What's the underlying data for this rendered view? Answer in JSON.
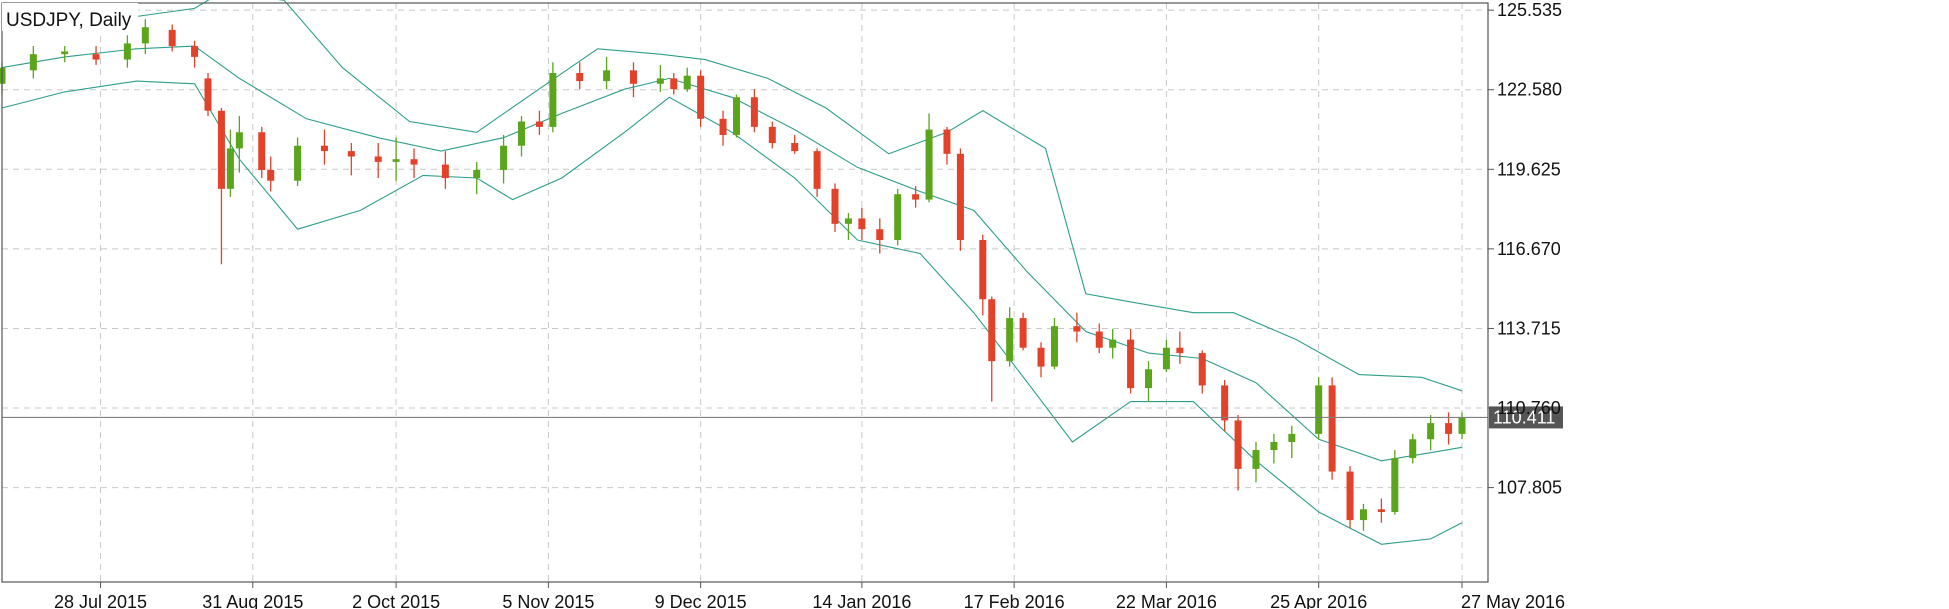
{
  "chart_data": {
    "type": "candlestick",
    "title": "USDJPY, Daily",
    "y_tick_labels": [
      "125.535",
      "122.580",
      "119.625",
      "116.670",
      "113.715",
      "110.760",
      "107.805"
    ],
    "y_ticks": [
      125.535,
      122.58,
      119.625,
      116.67,
      113.715,
      110.76,
      107.805
    ],
    "ylim": [
      104.3,
      125.8
    ],
    "x_tick_labels": [
      "28 Jul 2015",
      "31 Aug 2015",
      "2 Oct 2015",
      "5 Nov 2015",
      "9 Dec 2015",
      "14 Jan 2016",
      "17 Feb 2016",
      "22 Mar 2016",
      "25 Apr 2016",
      "27 May 2016"
    ],
    "x_tick_dates": [
      "2015-07-28",
      "2015-08-31",
      "2015-10-02",
      "2015-11-05",
      "2015-12-09",
      "2016-01-14",
      "2016-02-17",
      "2016-03-22",
      "2016-04-25",
      "2016-05-27"
    ],
    "date_range": [
      "2015-07-06",
      "2016-05-27"
    ],
    "current_price": "110.411",
    "colors": {
      "up": "#5aa51c",
      "down": "#e2412a",
      "band": "#2e9e8a",
      "grid": "#c8c8c8",
      "price_tag_bg": "#555555"
    },
    "series": [
      {
        "type": "candlestick",
        "points": [
          [
            "2015-07-06",
            122.8,
            123.6,
            122.4,
            123.4
          ],
          [
            "2015-07-13",
            123.3,
            124.2,
            123.0,
            123.9
          ],
          [
            "2015-07-20",
            123.9,
            124.2,
            123.6,
            124.0
          ],
          [
            "2015-07-27",
            123.9,
            124.2,
            123.5,
            123.7
          ],
          [
            "2015-08-03",
            123.7,
            124.6,
            123.4,
            124.3
          ],
          [
            "2015-08-07",
            124.3,
            125.2,
            123.9,
            124.9
          ],
          [
            "2015-08-13",
            124.8,
            125.0,
            124.0,
            124.2
          ],
          [
            "2015-08-18",
            124.2,
            124.4,
            123.4,
            123.8
          ],
          [
            "2015-08-21",
            123.0,
            123.2,
            121.6,
            121.8
          ],
          [
            "2015-08-24",
            121.8,
            121.9,
            116.1,
            118.9
          ],
          [
            "2015-08-26",
            118.9,
            121.1,
            118.6,
            120.4
          ],
          [
            "2015-08-28",
            120.4,
            121.6,
            119.5,
            121.0
          ],
          [
            "2015-09-02",
            121.0,
            121.2,
            119.3,
            119.6
          ],
          [
            "2015-09-04",
            119.6,
            120.1,
            118.8,
            119.2
          ],
          [
            "2015-09-10",
            119.2,
            120.8,
            119.0,
            120.5
          ],
          [
            "2015-09-16",
            120.5,
            121.1,
            119.8,
            120.3
          ],
          [
            "2015-09-22",
            120.3,
            120.6,
            119.4,
            120.1
          ],
          [
            "2015-09-28",
            120.1,
            120.6,
            119.3,
            119.9
          ],
          [
            "2015-10-02",
            119.9,
            120.8,
            119.2,
            120.0
          ],
          [
            "2015-10-06",
            120.0,
            120.4,
            119.3,
            119.8
          ],
          [
            "2015-10-13",
            119.8,
            120.3,
            118.9,
            119.3
          ],
          [
            "2015-10-20",
            119.3,
            119.9,
            118.7,
            119.6
          ],
          [
            "2015-10-26",
            119.6,
            120.9,
            119.1,
            120.5
          ],
          [
            "2015-10-30",
            120.5,
            121.6,
            120.1,
            121.4
          ],
          [
            "2015-11-03",
            121.4,
            121.8,
            120.9,
            121.2
          ],
          [
            "2015-11-06",
            121.2,
            123.6,
            121.0,
            123.2
          ],
          [
            "2015-11-12",
            123.2,
            123.6,
            122.6,
            122.9
          ],
          [
            "2015-11-18",
            122.9,
            123.8,
            122.6,
            123.3
          ],
          [
            "2015-11-24",
            123.3,
            123.6,
            122.3,
            122.8
          ],
          [
            "2015-11-30",
            122.8,
            123.5,
            122.5,
            123.0
          ],
          [
            "2015-12-03",
            123.0,
            123.2,
            122.4,
            122.6
          ],
          [
            "2015-12-06",
            122.6,
            123.4,
            122.5,
            123.1
          ],
          [
            "2015-12-09",
            123.1,
            123.3,
            121.2,
            121.5
          ],
          [
            "2015-12-14",
            121.5,
            121.8,
            120.5,
            120.9
          ],
          [
            "2015-12-17",
            120.9,
            122.4,
            120.8,
            122.3
          ],
          [
            "2015-12-21",
            122.3,
            122.6,
            121.0,
            121.2
          ],
          [
            "2015-12-25",
            121.2,
            121.4,
            120.4,
            120.6
          ],
          [
            "2015-12-30",
            120.6,
            120.9,
            120.2,
            120.3
          ],
          [
            "2016-01-04",
            120.3,
            120.4,
            118.6,
            118.9
          ],
          [
            "2016-01-08",
            118.9,
            119.1,
            117.3,
            117.6
          ],
          [
            "2016-01-11",
            117.6,
            118.0,
            117.0,
            117.8
          ],
          [
            "2016-01-14",
            117.8,
            118.2,
            117.0,
            117.4
          ],
          [
            "2016-01-18",
            117.4,
            117.8,
            116.5,
            117.0
          ],
          [
            "2016-01-22",
            117.0,
            118.9,
            116.8,
            118.7
          ],
          [
            "2016-01-26",
            118.7,
            119.0,
            118.2,
            118.5
          ],
          [
            "2016-01-29",
            118.5,
            121.7,
            118.4,
            121.1
          ],
          [
            "2016-02-02",
            121.1,
            121.2,
            119.8,
            120.2
          ],
          [
            "2016-02-05",
            120.2,
            120.4,
            116.6,
            117.0
          ],
          [
            "2016-02-10",
            117.0,
            117.2,
            114.2,
            114.8
          ],
          [
            "2016-02-12",
            114.8,
            114.9,
            111.0,
            112.5
          ],
          [
            "2016-02-16",
            112.5,
            114.5,
            112.3,
            114.1
          ],
          [
            "2016-02-19",
            114.1,
            114.3,
            112.9,
            113.0
          ],
          [
            "2016-02-23",
            113.0,
            113.2,
            111.9,
            112.3
          ],
          [
            "2016-02-26",
            112.3,
            114.1,
            112.2,
            113.8
          ],
          [
            "2016-03-02",
            113.8,
            114.3,
            113.2,
            113.6
          ],
          [
            "2016-03-07",
            113.6,
            113.9,
            112.8,
            113.0
          ],
          [
            "2016-03-10",
            113.0,
            113.7,
            112.6,
            113.3
          ],
          [
            "2016-03-14",
            113.3,
            113.7,
            111.3,
            111.5
          ],
          [
            "2016-03-18",
            111.5,
            112.5,
            111.0,
            112.2
          ],
          [
            "2016-03-22",
            112.2,
            113.3,
            112.1,
            113.0
          ],
          [
            "2016-03-25",
            113.0,
            113.6,
            112.4,
            112.8
          ],
          [
            "2016-03-30",
            112.8,
            112.9,
            111.3,
            111.6
          ],
          [
            "2016-04-04",
            111.6,
            111.8,
            109.9,
            110.3
          ],
          [
            "2016-04-07",
            110.3,
            110.5,
            107.7,
            108.5
          ],
          [
            "2016-04-11",
            108.5,
            109.5,
            108.0,
            109.2
          ],
          [
            "2016-04-15",
            109.2,
            109.8,
            108.7,
            109.5
          ],
          [
            "2016-04-19",
            109.5,
            110.1,
            108.9,
            109.8
          ],
          [
            "2016-04-25",
            109.8,
            111.9,
            109.6,
            111.6
          ],
          [
            "2016-04-28",
            111.6,
            111.9,
            108.1,
            108.4
          ],
          [
            "2016-05-02",
            108.4,
            108.6,
            106.3,
            106.6
          ],
          [
            "2016-05-05",
            106.6,
            107.2,
            106.2,
            107.0
          ],
          [
            "2016-05-09",
            107.0,
            107.4,
            106.5,
            106.9
          ],
          [
            "2016-05-12",
            106.9,
            109.2,
            106.8,
            108.9
          ],
          [
            "2016-05-16",
            108.9,
            109.8,
            108.7,
            109.6
          ],
          [
            "2016-05-20",
            109.6,
            110.5,
            109.2,
            110.2
          ],
          [
            "2016-05-24",
            110.2,
            110.6,
            109.4,
            109.8
          ],
          [
            "2016-05-27",
            109.8,
            110.6,
            109.6,
            110.4
          ]
        ]
      },
      {
        "type": "line",
        "points": [
          [
            "2015-07-06",
            124.9
          ],
          [
            "2015-07-20",
            125.1
          ],
          [
            "2015-08-05",
            125.3
          ],
          [
            "2015-08-18",
            125.6
          ],
          [
            "2015-08-24",
            126.2
          ],
          [
            "2015-09-07",
            125.9
          ],
          [
            "2015-09-20",
            123.4
          ],
          [
            "2015-10-05",
            121.4
          ],
          [
            "2015-10-20",
            121.0
          ],
          [
            "2015-11-02",
            122.5
          ],
          [
            "2015-11-16",
            124.1
          ],
          [
            "2015-11-30",
            123.9
          ],
          [
            "2015-12-10",
            123.7
          ],
          [
            "2015-12-24",
            123.0
          ],
          [
            "2016-01-06",
            121.9
          ],
          [
            "2016-01-20",
            120.2
          ],
          [
            "2016-02-02",
            121.0
          ],
          [
            "2016-02-10",
            121.8
          ],
          [
            "2016-02-24",
            120.4
          ],
          [
            "2016-03-04",
            115.0
          ],
          [
            "2016-03-14",
            114.7
          ],
          [
            "2016-03-28",
            114.3
          ],
          [
            "2016-04-06",
            114.3
          ],
          [
            "2016-04-20",
            113.3
          ],
          [
            "2016-05-04",
            112.0
          ],
          [
            "2016-05-18",
            111.9
          ],
          [
            "2016-05-27",
            111.4
          ]
        ]
      },
      {
        "type": "line",
        "points": [
          [
            "2015-07-06",
            123.4
          ],
          [
            "2015-07-20",
            123.8
          ],
          [
            "2015-08-05",
            124.1
          ],
          [
            "2015-08-18",
            124.2
          ],
          [
            "2015-08-28",
            123.0
          ],
          [
            "2015-09-12",
            121.5
          ],
          [
            "2015-09-28",
            120.8
          ],
          [
            "2015-10-12",
            120.3
          ],
          [
            "2015-10-26",
            120.8
          ],
          [
            "2015-11-08",
            121.7
          ],
          [
            "2015-11-22",
            122.6
          ],
          [
            "2015-12-02",
            123.0
          ],
          [
            "2015-12-16",
            122.3
          ],
          [
            "2015-12-30",
            121.1
          ],
          [
            "2016-01-13",
            119.7
          ],
          [
            "2016-01-27",
            118.8
          ],
          [
            "2016-02-08",
            118.1
          ],
          [
            "2016-02-20",
            115.8
          ],
          [
            "2016-03-04",
            113.6
          ],
          [
            "2016-03-18",
            112.8
          ],
          [
            "2016-03-30",
            112.6
          ],
          [
            "2016-04-11",
            111.7
          ],
          [
            "2016-04-25",
            109.6
          ],
          [
            "2016-05-09",
            108.8
          ],
          [
            "2016-05-20",
            109.1
          ],
          [
            "2016-05-27",
            109.3
          ]
        ]
      },
      {
        "type": "line",
        "points": [
          [
            "2015-07-06",
            121.9
          ],
          [
            "2015-07-20",
            122.5
          ],
          [
            "2015-08-05",
            122.9
          ],
          [
            "2015-08-18",
            122.8
          ],
          [
            "2015-08-28",
            120.0
          ],
          [
            "2015-09-10",
            117.4
          ],
          [
            "2015-09-24",
            118.1
          ],
          [
            "2015-10-08",
            119.4
          ],
          [
            "2015-10-20",
            119.3
          ],
          [
            "2015-10-28",
            118.5
          ],
          [
            "2015-11-08",
            119.3
          ],
          [
            "2015-11-22",
            121.0
          ],
          [
            "2015-12-02",
            122.3
          ],
          [
            "2015-12-16",
            121.0
          ],
          [
            "2015-12-30",
            119.3
          ],
          [
            "2016-01-13",
            117.0
          ],
          [
            "2016-01-27",
            116.5
          ],
          [
            "2016-02-08",
            114.3
          ],
          [
            "2016-02-20",
            111.7
          ],
          [
            "2016-03-01",
            109.5
          ],
          [
            "2016-03-14",
            111.0
          ],
          [
            "2016-03-28",
            111.0
          ],
          [
            "2016-04-11",
            108.8
          ],
          [
            "2016-04-25",
            106.9
          ],
          [
            "2016-05-09",
            105.7
          ],
          [
            "2016-05-20",
            105.9
          ],
          [
            "2016-05-27",
            106.5
          ]
        ]
      }
    ]
  }
}
